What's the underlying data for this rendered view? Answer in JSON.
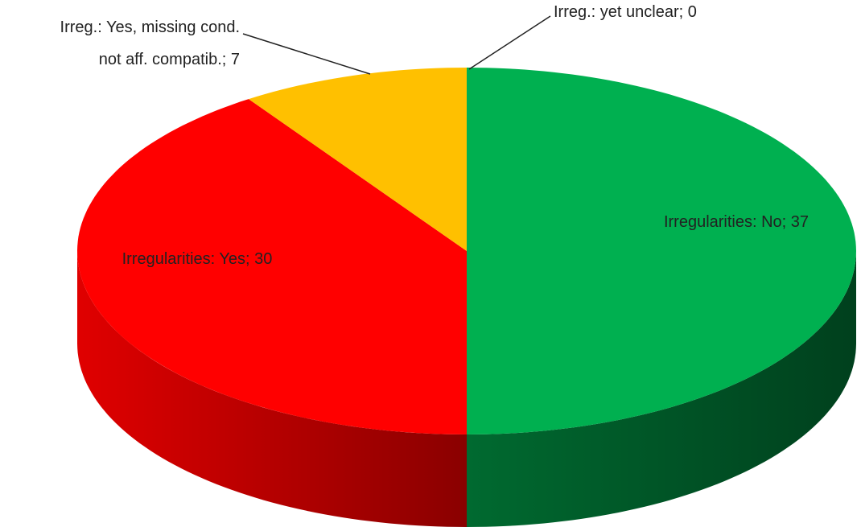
{
  "chart_data": {
    "type": "pie",
    "values": [
      37,
      30,
      7,
      0
    ],
    "value_labels": [
      "Irregularities: No; 37",
      "Irregularities: Yes; 30",
      "Irreg.: Yes, missing cond.\nnot aff. compatib.; 7",
      "Irreg.: yet unclear; 0"
    ],
    "colors": [
      "#00b050",
      "#ff0000",
      "#ffc000",
      "#7f7f7f"
    ],
    "start_angle": 0,
    "direction": "clockwise",
    "3d": true
  }
}
